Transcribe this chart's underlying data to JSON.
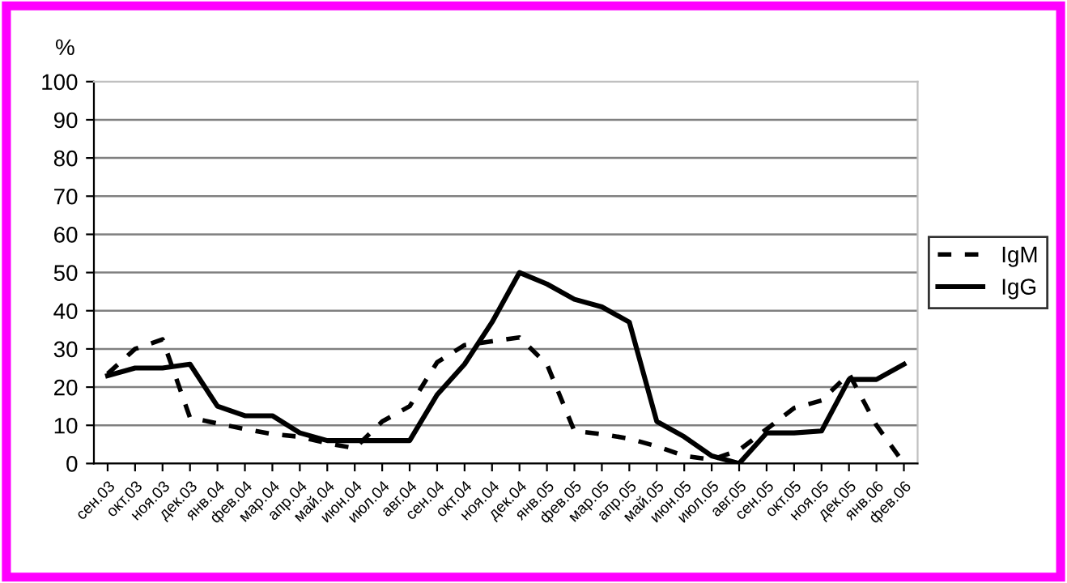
{
  "chart_data": {
    "type": "line",
    "ylabel": "%",
    "categories": [
      "сен.03",
      "окт.03",
      "ноя.03",
      "дек.03",
      "янв.04",
      "фев.04",
      "мар.04",
      "апр.04",
      "май.04",
      "июн.04",
      "июл.04",
      "авг.04",
      "сен.04",
      "окт.04",
      "ноя.04",
      "дек.04",
      "янв.05",
      "фев.05",
      "мар.05",
      "апр.05",
      "май.05",
      "июн.05",
      "июл.05",
      "авг.05",
      "сен.05",
      "окт.05",
      "ноя.05",
      "дек.05",
      "янв.06",
      "фев.06"
    ],
    "series": [
      {
        "name": "IgM",
        "color": "#000000",
        "line_style": "dashed",
        "values": [
          23.5,
          30,
          32.5,
          12,
          10.5,
          9,
          7.7,
          7,
          5.3,
          4,
          11,
          15,
          26.5,
          31,
          32,
          33,
          26,
          8.5,
          7.7,
          6.5,
          4.5,
          2,
          1,
          3.5,
          9,
          14.5,
          16.5,
          23.5,
          10,
          0
        ]
      },
      {
        "name": "IgG",
        "color": "#000000",
        "line_style": "solid",
        "values": [
          23,
          25,
          25,
          26,
          15,
          12.5,
          12.5,
          8,
          6,
          6,
          6,
          6,
          18,
          26,
          37,
          50,
          47,
          43,
          41,
          37,
          11,
          7,
          2,
          0,
          8,
          8,
          8.5,
          22,
          22,
          26
        ]
      }
    ],
    "ylim": [
      0,
      100
    ],
    "yticks": [
      0,
      10,
      20,
      30,
      40,
      50,
      60,
      70,
      80,
      90,
      100
    ],
    "grid": "y",
    "legend": "right"
  }
}
